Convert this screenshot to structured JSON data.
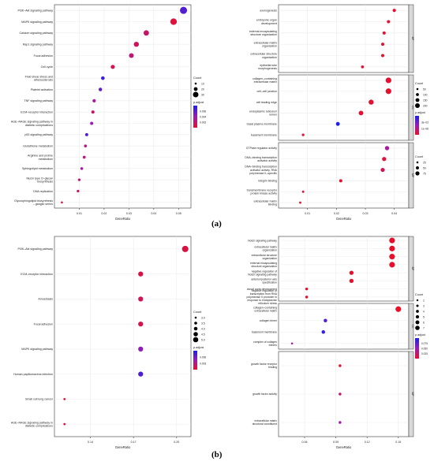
{
  "captions": {
    "a": "(a)",
    "b": "(b)"
  },
  "chart_data": [
    {
      "id": "a_kegg",
      "type": "scatter",
      "xlabel": "GeneRatio",
      "xlim": [
        0.0,
        0.055
      ],
      "xticks": [
        0.01,
        0.02,
        0.03,
        0.04,
        0.05
      ],
      "xtick_labels": [
        "0.01",
        "0.02",
        "0.03",
        "0.04",
        "0.05"
      ],
      "categories": [
        "PI3K–Akt signaling pathway",
        "MAPK signaling pathway",
        "Calcium signaling pathway",
        "Rap1 signaling pathway",
        "Focal adhesion",
        "Cell cycle",
        "Fluid shear stress and atherosclerosis",
        "Platelet activation",
        "TNF signaling pathway",
        "ECM–receptor interaction",
        "AGE–RAGE signaling pathway in diabetic complications",
        "p53 signaling pathway",
        "Glutathione metabolism",
        "Arginine and proline metabolism",
        "Sphingolipid metabolism",
        "Mucin type O–glycan biosynthesis",
        "DNA replication",
        "Glycosphingolipid biosynthesis – ganglio series"
      ],
      "x": [
        0.052,
        0.048,
        0.037,
        0.033,
        0.031,
        0.0235,
        0.0195,
        0.0185,
        0.016,
        0.0155,
        0.015,
        0.013,
        0.0125,
        0.012,
        0.011,
        0.01,
        0.0095,
        0.003
      ],
      "count": [
        38,
        34,
        26,
        24,
        22,
        17,
        14,
        13,
        12,
        11,
        11,
        10,
        9,
        9,
        8,
        7,
        7,
        3
      ],
      "p_adjust": [
        0.0055,
        0.0005,
        0.0015,
        0.0012,
        0.002,
        0.0008,
        0.006,
        0.005,
        0.003,
        0.0015,
        0.0035,
        0.0055,
        0.0025,
        0.002,
        0.003,
        0.002,
        0.0015,
        0.0005
      ],
      "legend": {
        "count_title": "Count",
        "count_values": [
          10,
          20,
          30
        ],
        "count_labels": [
          "10",
          "20",
          "30"
        ],
        "color_title": "p.adjust",
        "color_ticks": [
          "0.002",
          "0.004",
          "0.006"
        ],
        "color_range": [
          0.0,
          0.007
        ]
      }
    },
    {
      "id": "a_go",
      "type": "scatter",
      "xlabel": "GeneRatio",
      "xlim": [
        0.0,
        0.045
      ],
      "xticks": [
        0.01,
        0.02,
        0.03,
        0.04
      ],
      "xtick_labels": [
        "0.01",
        "0.02",
        "0.03",
        "0.04"
      ],
      "facets": [
        {
          "label": "BP",
          "categories": [
            "axonogenesis",
            "embryonic organ development",
            "external encapsulating structure organization",
            "extracellular matrix organization",
            "extracellular structure organization",
            "epithelial tube morphogenesis"
          ],
          "x": [
            0.04,
            0.038,
            0.0365,
            0.036,
            0.036,
            0.029
          ],
          "count": [
            82,
            78,
            75,
            74,
            74,
            60
          ],
          "p_adjust": [
            0.0001,
            0.0003,
            0.0002,
            0.0002,
            0.0002,
            0.0005
          ]
        },
        {
          "label": "CC",
          "categories": [
            "collagen–containing extracellular matrix",
            "cell–cell junction",
            "cell leading edge",
            "endoplasmic reticulum lumen",
            "basal plasma membrane",
            "basement membrane"
          ],
          "x": [
            0.038,
            0.038,
            0.032,
            0.0285,
            0.0205,
            0.0085
          ],
          "count": [
            205,
            205,
            172,
            153,
            110,
            45
          ],
          "p_adjust": [
            0.0002,
            0.0001,
            0.0003,
            0.0004,
            0.012,
            0.0002
          ]
        },
        {
          "label": "MF",
          "categories": [
            "GTPase regulator activity",
            "DNA–binding transcription activator activity",
            "DNA–binding transcription activator activity, RNA polymerase II–specific",
            "integrin binding",
            "transmembrane receptor protein kinase activity",
            "extracellular matrix binding"
          ],
          "x": [
            0.0375,
            0.0365,
            0.036,
            0.0215,
            0.0085,
            0.0075
          ],
          "count": [
            130,
            126,
            124,
            74,
            29,
            25
          ],
          "p_adjust": [
            0.0048,
            0.0008,
            0.0018,
            0.0002,
            0.0006,
            0.0003
          ]
        }
      ],
      "legend": [
        {
          "count_title": "Count",
          "count_values": [
            50,
            100,
            150,
            200
          ],
          "count_labels": [
            "50",
            "100",
            "150",
            "200"
          ],
          "color_title": "p.adjust",
          "color_ticks": [
            "1e–08",
            "3e–03"
          ],
          "color_range": [
            0.0,
            0.012
          ]
        },
        {
          "count_title": "Count",
          "count_values": [
            25,
            50,
            75
          ],
          "count_labels": [
            "25",
            "50",
            "75"
          ]
        }
      ]
    },
    {
      "id": "b_kegg",
      "type": "scatter",
      "xlabel": "GeneRatio",
      "xlim": [
        0.115,
        0.21
      ],
      "xticks": [
        0.14,
        0.17,
        0.2
      ],
      "xtick_labels": [
        "0.14",
        "0.17",
        "0.20"
      ],
      "categories": [
        "PI3K–Akt signaling pathway",
        "ECM–receptor interaction",
        "Amoebiasis",
        "Focal adhesion",
        "MAPK signaling pathway",
        "Human papillomavirus infection",
        "Small cell lung cancer",
        "AGE–RAGE signaling pathway in diabetic complications"
      ],
      "x": [
        0.206,
        0.175,
        0.175,
        0.175,
        0.175,
        0.175,
        0.122,
        0.122
      ],
      "count": [
        5,
        4,
        4,
        4,
        4,
        4,
        2,
        2
      ],
      "p_adjust": [
        0.0005,
        0.0006,
        0.0009,
        0.0007,
        0.0032,
        0.0048,
        0.0004,
        0.0005
      ],
      "legend": {
        "count_title": "Count",
        "count_values": [
          3.0,
          3.5,
          4.0,
          4.5,
          5.0
        ],
        "count_labels": [
          "3.0",
          "3.5",
          "4.0",
          "4.5",
          "5.0"
        ],
        "color_title": "p.adjust",
        "color_ticks": [
          "0.003",
          "0.006"
        ],
        "color_range": [
          0.0,
          0.006
        ]
      }
    },
    {
      "id": "b_go",
      "type": "scatter",
      "xlabel": "GeneRatio",
      "xlim": [
        0.035,
        0.16
      ],
      "xticks": [
        0.06,
        0.09,
        0.12,
        0.15
      ],
      "xtick_labels": [
        "0.06",
        "0.09",
        "0.12",
        "0.15"
      ],
      "facets": [
        {
          "label": "BP",
          "categories": [
            "Notch signaling pathway",
            "extracellular matrix organization",
            "extracellular structure organization",
            "external encapsulating structure organization",
            "negative regulation of Notch signaling pathway",
            "anterior/posterior axis specification",
            "dorsal aorta development",
            "negative regulation of transcription from RNA polymerase II promoter in response to endoplasmic reticulum stress"
          ],
          "x": [
            0.144,
            0.144,
            0.144,
            0.144,
            0.105,
            0.105,
            0.062,
            0.062
          ],
          "count": [
            7,
            7,
            7,
            7,
            5,
            5,
            3,
            3
          ],
          "p_adjust": [
            0.001,
            0.001,
            0.001,
            0.001,
            0.001,
            0.001,
            0.001,
            0.001
          ]
        },
        {
          "label": "CC",
          "categories": [
            "collagen–containing extracellular matrix",
            "collagen trimer",
            "basement membrane",
            "complex of collagen trimers"
          ],
          "x": [
            0.15,
            0.08,
            0.078,
            0.048
          ],
          "count": [
            7,
            4,
            4,
            2
          ],
          "p_adjust": [
            0.0002,
            0.07,
            0.082,
            0.035
          ]
        },
        {
          "label": "MF",
          "categories": [
            "growth factor receptor binding",
            "growth factor activity",
            "extracellular matrix structural constituent"
          ],
          "x": [
            0.094,
            0.094,
            0.094
          ],
          "count": [
            3,
            3,
            3
          ],
          "p_adjust": [
            0.002,
            0.02,
            0.04
          ]
        }
      ],
      "legend": {
        "count_title": "Count",
        "count_values": [
          2,
          3,
          4,
          5,
          6,
          7
        ],
        "count_labels": [
          "2",
          "3",
          "4",
          "5",
          "6",
          "7"
        ],
        "color_title": "p.adjust",
        "color_ticks": [
          "0.025",
          "0.050",
          "0.075"
        ],
        "color_range": [
          0.0,
          0.09
        ]
      }
    }
  ],
  "colors": {
    "low": "#e8102a",
    "mid": "#9a1cb5",
    "high": "#1b20e8",
    "grid": "#ebebeb",
    "frame": "#333333",
    "strip": "#d9d9d9"
  }
}
